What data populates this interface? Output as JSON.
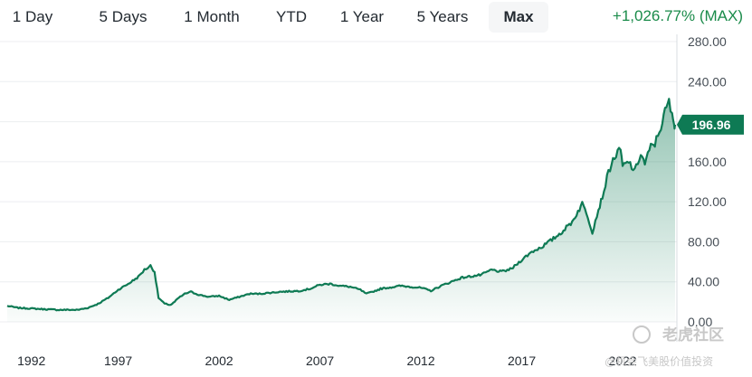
{
  "ranges": {
    "tabs": [
      {
        "label": "1 Day",
        "active": false
      },
      {
        "label": "5 Days",
        "active": false
      },
      {
        "label": "1 Month",
        "active": false
      },
      {
        "label": "YTD",
        "active": false
      },
      {
        "label": "1 Year",
        "active": false
      },
      {
        "label": "5 Years",
        "active": false
      },
      {
        "label": "Max",
        "active": true
      }
    ]
  },
  "performance": {
    "change": "+1,026.77% (MAX)"
  },
  "watermark": {
    "brand": "老虎社区",
    "handle": "@机会飞美股价值投资"
  },
  "colors": {
    "line": "#0e7a54",
    "positive": "#1a8b4a",
    "badge": "#0e7a54"
  },
  "chart_data": {
    "type": "area",
    "y_ticks": [
      "280.00",
      "240.00",
      "200.00",
      "160.00",
      "120.00",
      "80.00",
      "40.00",
      "0.00"
    ],
    "x_ticks": [
      "1992",
      "1997",
      "2002",
      "2007",
      "2012",
      "2017",
      "2022"
    ],
    "ylim": [
      0,
      280
    ],
    "xlim": [
      1991.5,
      2024.6
    ],
    "current_price": "196.96",
    "current_value": 196.96,
    "x": [
      1991.5,
      1992.0,
      1993.0,
      1994.0,
      1995.0,
      1995.5,
      1996.0,
      1996.5,
      1997.0,
      1997.5,
      1998.0,
      1998.3,
      1998.6,
      1998.8,
      1999.0,
      1999.3,
      1999.6,
      1999.8,
      2000.0,
      2000.3,
      2000.6,
      2001.0,
      2001.5,
      2002.0,
      2002.5,
      2003.0,
      2003.5,
      2004.0,
      2005.0,
      2006.0,
      2006.5,
      2007.0,
      2007.5,
      2008.0,
      2008.5,
      2009.0,
      2009.3,
      2009.6,
      2010.0,
      2011.0,
      2012.0,
      2012.5,
      2013.0,
      2013.5,
      2014.0,
      2015.0,
      2015.5,
      2016.0,
      2016.5,
      2017.0,
      2017.5,
      2018.0,
      2018.5,
      2019.0,
      2019.5,
      2020.0,
      2020.2,
      2020.5,
      2020.8,
      2021.0,
      2021.3,
      2021.6,
      2021.9,
      2022.0,
      2022.3,
      2022.6,
      2022.9,
      2023.1,
      2023.4,
      2023.6,
      2023.9,
      2024.1,
      2024.3,
      2024.45,
      2024.55,
      2024.6
    ],
    "values": [
      16,
      14,
      13,
      12,
      12,
      14,
      18,
      24,
      32,
      38,
      45,
      52,
      56,
      50,
      24,
      18,
      17,
      20,
      24,
      28,
      30,
      27,
      25,
      26,
      22,
      25,
      28,
      28,
      30,
      31,
      33,
      37,
      38,
      36,
      35,
      32,
      28,
      30,
      33,
      36,
      34,
      31,
      36,
      40,
      44,
      47,
      52,
      50,
      53,
      62,
      70,
      75,
      82,
      90,
      100,
      118,
      110,
      90,
      112,
      125,
      150,
      165,
      172,
      155,
      160,
      150,
      168,
      158,
      175,
      178,
      195,
      210,
      220,
      205,
      198,
      197
    ]
  }
}
